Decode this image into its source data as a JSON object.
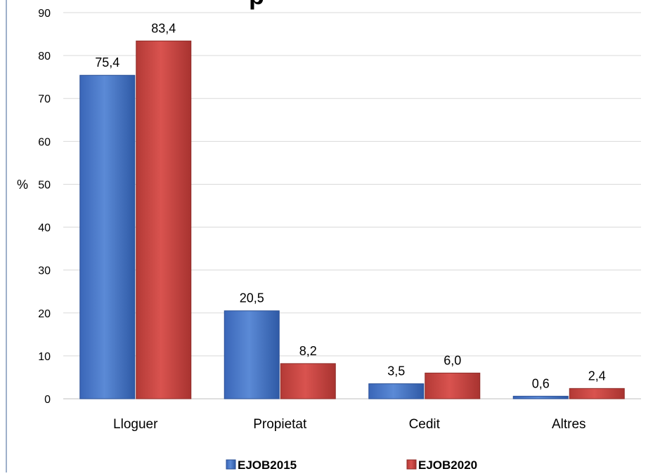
{
  "chart_data": {
    "type": "bar",
    "title": "",
    "title_visible_fragment": "p",
    "xlabel": "",
    "ylabel": "%",
    "categories": [
      "Lloguer",
      "Propietat",
      "Cedit",
      "Altres"
    ],
    "series": [
      {
        "name": "EJOB2015",
        "color": "#4472c4",
        "values": [
          75.4,
          20.5,
          3.5,
          0.6
        ],
        "labels": [
          "75,4",
          "20,5",
          "3,5",
          "0,6"
        ]
      },
      {
        "name": "EJOB2020",
        "color": "#c0504d",
        "values": [
          83.4,
          8.2,
          6.0,
          2.4
        ],
        "labels": [
          "83,4",
          "8,2",
          "6,0",
          "2,4"
        ]
      }
    ],
    "ylim": [
      0,
      90
    ],
    "yticks": [
      0,
      10,
      20,
      30,
      40,
      50,
      60,
      70,
      80,
      90
    ],
    "grid": true,
    "legend_position": "bottom"
  }
}
